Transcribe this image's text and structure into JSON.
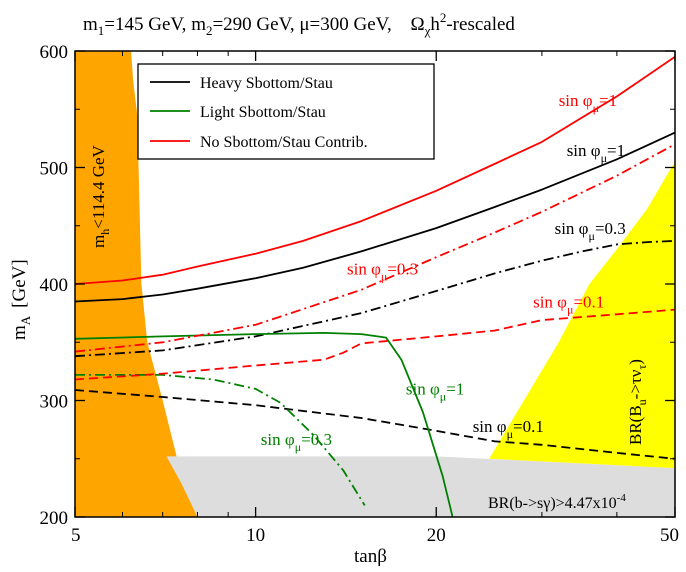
{
  "chart_data": {
    "type": "line",
    "title": "m₁=145 GeV, m₂=290 GeV, μ=300 GeV,    Ωχh²-rescaled",
    "title_parts": {
      "m1": "m",
      "m1_sub": "1",
      "m1_val": "=145 GeV,",
      "m2": "m",
      "m2_sub": "2",
      "m2_val": "=290 GeV,",
      "mu": "μ=300 GeV,",
      "omega": "Ω",
      "omega_sub": "χ",
      "h": "h",
      "h_sup": "2",
      "rescaled": "-rescaled"
    },
    "xlabel": "tanβ",
    "ylabel_main": "m",
    "ylabel_sub": "A",
    "ylabel_unit": "[GeV]",
    "x_scale": "log",
    "xlim": [
      5,
      50
    ],
    "ylim": [
      200,
      600
    ],
    "x_ticks": [
      5,
      10,
      20,
      50
    ],
    "y_ticks": [
      200,
      300,
      400,
      500,
      600
    ],
    "legend": {
      "placement": "top-left",
      "entries": [
        {
          "label": "Heavy Sbottom/Stau",
          "color": "#000000"
        },
        {
          "label": "Light Sbottom/Stau",
          "color": "#008000"
        },
        {
          "label": "No Sbottom/Stau Contrib.",
          "color": "#ff0000"
        }
      ]
    },
    "regions": [
      {
        "name": "mh-excluded",
        "label_main": "m",
        "label_sub": "h",
        "label_rest": "<114.4 GeV",
        "color": "#ffa500",
        "boundary": [
          [
            5,
            600
          ],
          [
            6.2,
            600
          ],
          [
            6.25,
            575
          ],
          [
            6.35,
            545
          ],
          [
            6.45,
            400
          ],
          [
            6.6,
            350
          ],
          [
            7.0,
            300
          ],
          [
            7.4,
            250
          ],
          [
            8.0,
            200
          ],
          [
            5,
            200
          ]
        ]
      },
      {
        "name": "bsg-excluded",
        "label": "BR(b->sγ)>4.47x10",
        "label_sup": "-4",
        "color": "#dddddd",
        "boundary": [
          [
            7.1,
            252
          ],
          [
            20,
            252
          ],
          [
            50,
            242
          ],
          [
            50,
            200
          ],
          [
            8.0,
            200
          ],
          [
            7.5,
            230
          ]
        ]
      },
      {
        "name": "btaunu-excluded",
        "label_main": "BR(B",
        "label_sub1": "u",
        "label_mid": "->τν",
        "label_sub2": "τ",
        "label_end": ")",
        "color": "#ffff00",
        "boundary": [
          [
            50,
            505
          ],
          [
            48,
            490
          ],
          [
            45,
            465
          ],
          [
            40,
            430
          ],
          [
            36,
            400
          ],
          [
            32,
            350
          ],
          [
            28,
            300
          ],
          [
            24.5,
            250
          ],
          [
            50,
            242
          ]
        ]
      }
    ],
    "series": [
      {
        "name": "sin φμ=1",
        "group": "heavy",
        "color": "#000000",
        "dash": "solid",
        "x": [
          5,
          6,
          7,
          8,
          10,
          12,
          15,
          20,
          25,
          30,
          40,
          50
        ],
        "y": [
          385,
          387,
          391,
          396,
          405,
          414,
          428,
          448,
          466,
          481,
          507,
          530
        ]
      },
      {
        "name": "sin φμ=0.3",
        "group": "heavy",
        "color": "#000000",
        "dash": "dashdot",
        "x": [
          5,
          7,
          10,
          15,
          20,
          25,
          30,
          35,
          40,
          45,
          50
        ],
        "y": [
          338,
          343,
          355,
          375,
          394,
          409,
          420,
          428,
          434,
          436,
          437
        ]
      },
      {
        "name": "sin φμ=0.1",
        "group": "heavy",
        "color": "#000000",
        "dash": "dashed",
        "x": [
          5,
          7,
          10,
          15,
          20,
          25,
          30,
          40,
          50
        ],
        "y": [
          309,
          303,
          296,
          285,
          274,
          265,
          262,
          255,
          250
        ]
      },
      {
        "name": "sin φμ=1",
        "group": "light",
        "color": "#008000",
        "dash": "solid",
        "x": [
          5,
          7,
          10,
          13,
          15,
          16.5,
          17.5,
          19,
          20.5,
          21.3
        ],
        "y": [
          353,
          355,
          357,
          358,
          357,
          354,
          335,
          290,
          235,
          200
        ]
      },
      {
        "name": "sin φμ=0.3",
        "group": "light",
        "color": "#008000",
        "dash": "dashdot",
        "x": [
          5,
          7,
          8.5,
          10,
          11,
          12.5,
          14,
          15.2
        ],
        "y": [
          322,
          322,
          318,
          310,
          298,
          270,
          240,
          210
        ]
      },
      {
        "name": "sin φμ=1",
        "group": "none",
        "color": "#ff0000",
        "dash": "solid",
        "x": [
          5,
          6,
          7,
          8,
          10,
          12,
          15,
          20,
          25,
          30,
          40,
          50
        ],
        "y": [
          400,
          403,
          408,
          415,
          426,
          437,
          454,
          480,
          503,
          522,
          561,
          595
        ]
      },
      {
        "name": "sin φμ=0.3",
        "group": "none",
        "color": "#ff0000",
        "dash": "dashdot",
        "x": [
          5,
          7,
          10,
          15,
          20,
          25,
          30,
          40,
          50
        ],
        "y": [
          342,
          350,
          365,
          395,
          423,
          444,
          462,
          493,
          520
        ]
      },
      {
        "name": "sin φμ=0.1",
        "group": "none",
        "color": "#ff0000",
        "dash": "dashed",
        "x": [
          5,
          7,
          10,
          13,
          14,
          15,
          20,
          25,
          30,
          40,
          50
        ],
        "y": [
          318,
          323,
          330,
          335,
          341,
          349,
          355,
          360,
          369,
          374,
          378
        ]
      }
    ],
    "curve_labels": [
      {
        "text": "sin φ",
        "sub": "μ",
        "rest": "=1",
        "color": "#ff0000",
        "at": [
          32,
          553
        ]
      },
      {
        "text": "sin φ",
        "sub": "μ",
        "rest": "=1",
        "color": "#000000",
        "at": [
          33,
          510
        ]
      },
      {
        "text": "sin φ",
        "sub": "μ",
        "rest": "=0.3",
        "color": "#000000",
        "at": [
          31.5,
          443
        ]
      },
      {
        "text": "sin φ",
        "sub": "μ",
        "rest": "=0.3",
        "color": "#ff0000",
        "at": [
          14.2,
          408
        ]
      },
      {
        "text": "sin φ",
        "sub": "μ",
        "rest": "=0.1",
        "color": "#ff0000",
        "at": [
          29,
          380
        ]
      },
      {
        "text": "sin φ",
        "sub": "μ",
        "rest": "=1",
        "color": "#008000",
        "at": [
          17.8,
          305
        ]
      },
      {
        "text": "sin φ",
        "sub": "μ",
        "rest": "=0.3",
        "color": "#008000",
        "at": [
          10.2,
          262
        ]
      },
      {
        "text": "sin φ",
        "sub": "μ",
        "rest": "=0.1",
        "color": "#000000",
        "at": [
          23,
          273
        ]
      }
    ]
  }
}
